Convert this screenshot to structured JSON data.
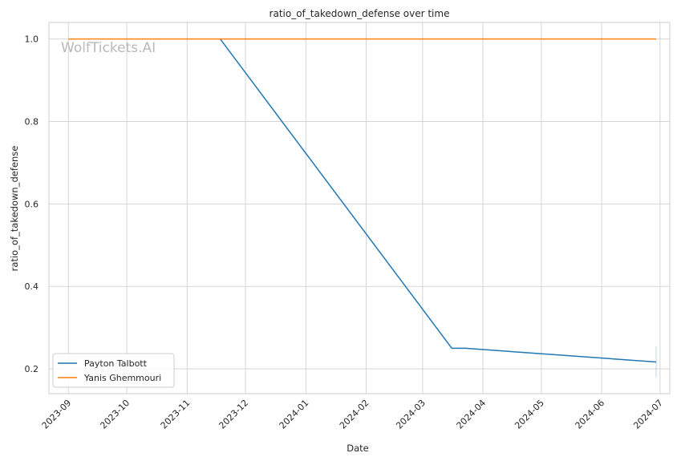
{
  "chart_data": {
    "type": "line",
    "title": "ratio_of_takedown_defense over time",
    "xlabel": "Date",
    "ylabel": "ratio_of_takedown_defense",
    "watermark": "WolfTickets.AI",
    "x_ticks": [
      "2023-09",
      "2023-10",
      "2023-11",
      "2023-12",
      "2024-01",
      "2024-02",
      "2024-03",
      "2024-04",
      "2024-05",
      "2024-06",
      "2024-07"
    ],
    "y_ticks": [
      "0.2",
      "0.4",
      "0.6",
      "0.8",
      "1.0"
    ],
    "xlim": [
      "2023-08-22",
      "2024-07-06"
    ],
    "ylim": [
      0.14,
      1.04
    ],
    "grid": true,
    "legend_position": "lower-left",
    "series": [
      {
        "name": "Payton Talbott",
        "color": "#1f77b4",
        "points": [
          {
            "x": "2023-11-18",
            "y": 1.0
          },
          {
            "x": "2024-03-16",
            "y": 0.25
          },
          {
            "x": "2024-03-23",
            "y": 0.25
          },
          {
            "x": "2024-06-29",
            "y": 0.2167
          }
        ],
        "error_bar": {
          "x": "2024-06-29",
          "low": 0.18,
          "high": 0.255
        }
      },
      {
        "name": "Yanis Ghemmouri",
        "color": "#ff7f0e",
        "points": [
          {
            "x": "2023-09-01",
            "y": 1.0
          },
          {
            "x": "2024-06-29",
            "y": 1.0
          }
        ]
      }
    ]
  }
}
